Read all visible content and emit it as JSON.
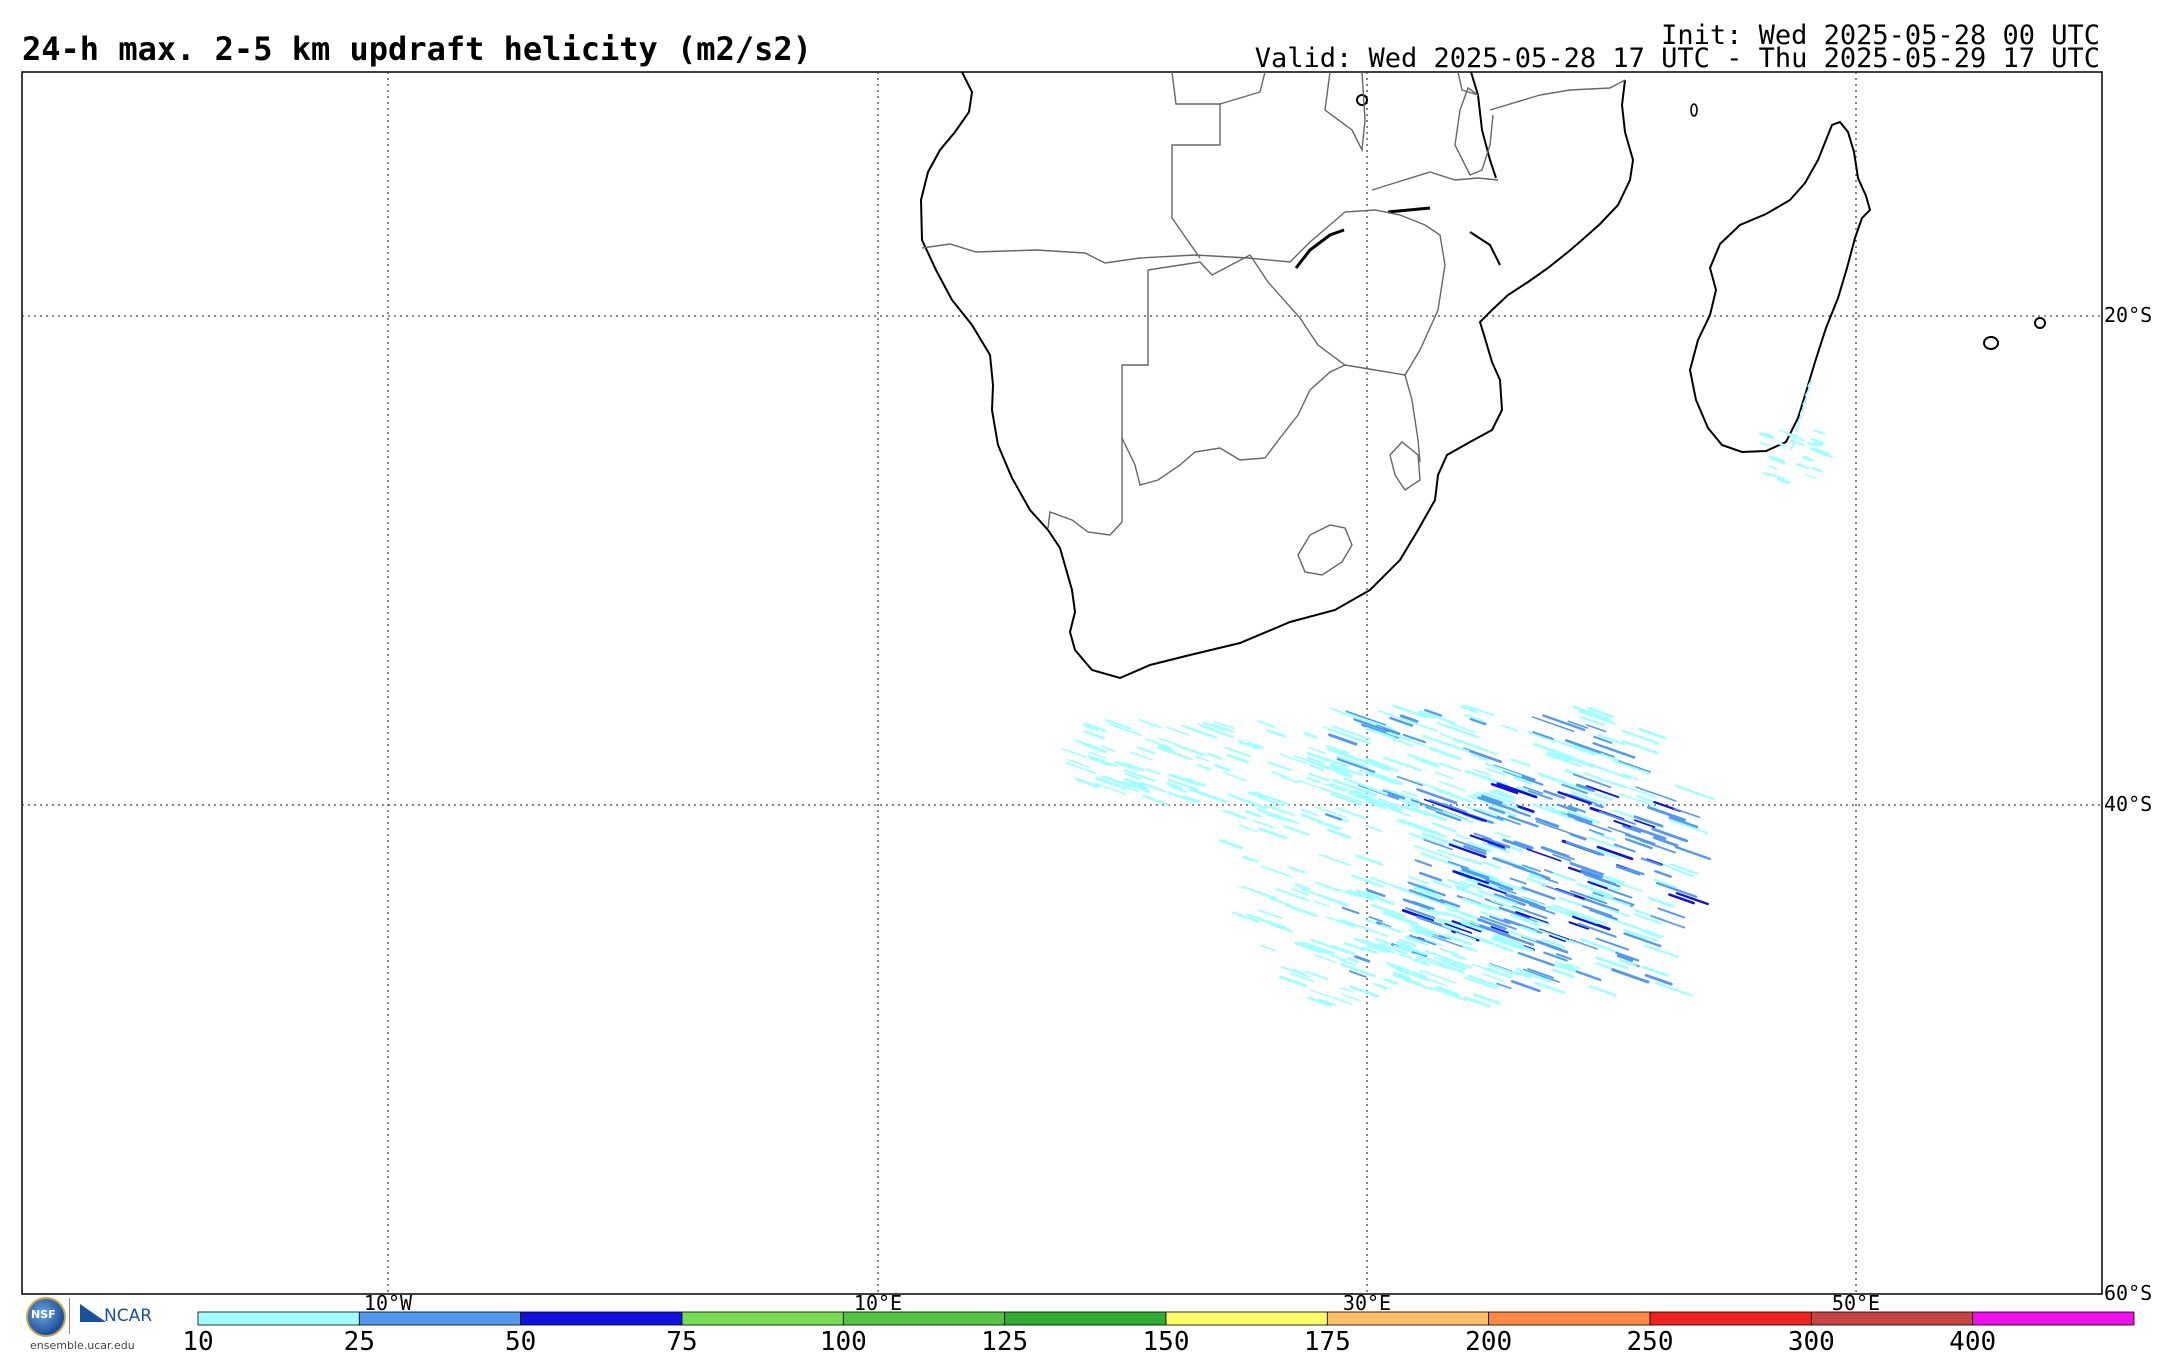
{
  "header": {
    "title": "24-h max. 2-5 km updraft helicity (m2/s2)",
    "init": "Init: Wed 2025-05-28 00 UTC",
    "valid": "Valid: Wed 2025-05-28 17 UTC - Thu 2025-05-29 17 UTC"
  },
  "map": {
    "region": "Southern Africa and surrounding oceans",
    "lat_labels": [
      "20°S",
      "40°S",
      "60°S"
    ],
    "lon_labels": [
      "10°W",
      "10°E",
      "30°E",
      "50°E"
    ],
    "gridlines": true
  },
  "colorbar": {
    "ticks": [
      "10",
      "25",
      "50",
      "75",
      "100",
      "125",
      "150",
      "175",
      "200",
      "250",
      "300",
      "400"
    ],
    "colors": [
      "#a0ffff",
      "#5599ee",
      "#1111dd",
      "#77dd55",
      "#55c444",
      "#33aa33",
      "#ffff66",
      "#ffc066",
      "#ff8844",
      "#ee2222",
      "#c84444",
      "#ee11ee"
    ]
  },
  "footer": {
    "logo_nsf": "NSF",
    "logo_ncar": "NCAR",
    "url": "ensemble.ucar.edu"
  }
}
